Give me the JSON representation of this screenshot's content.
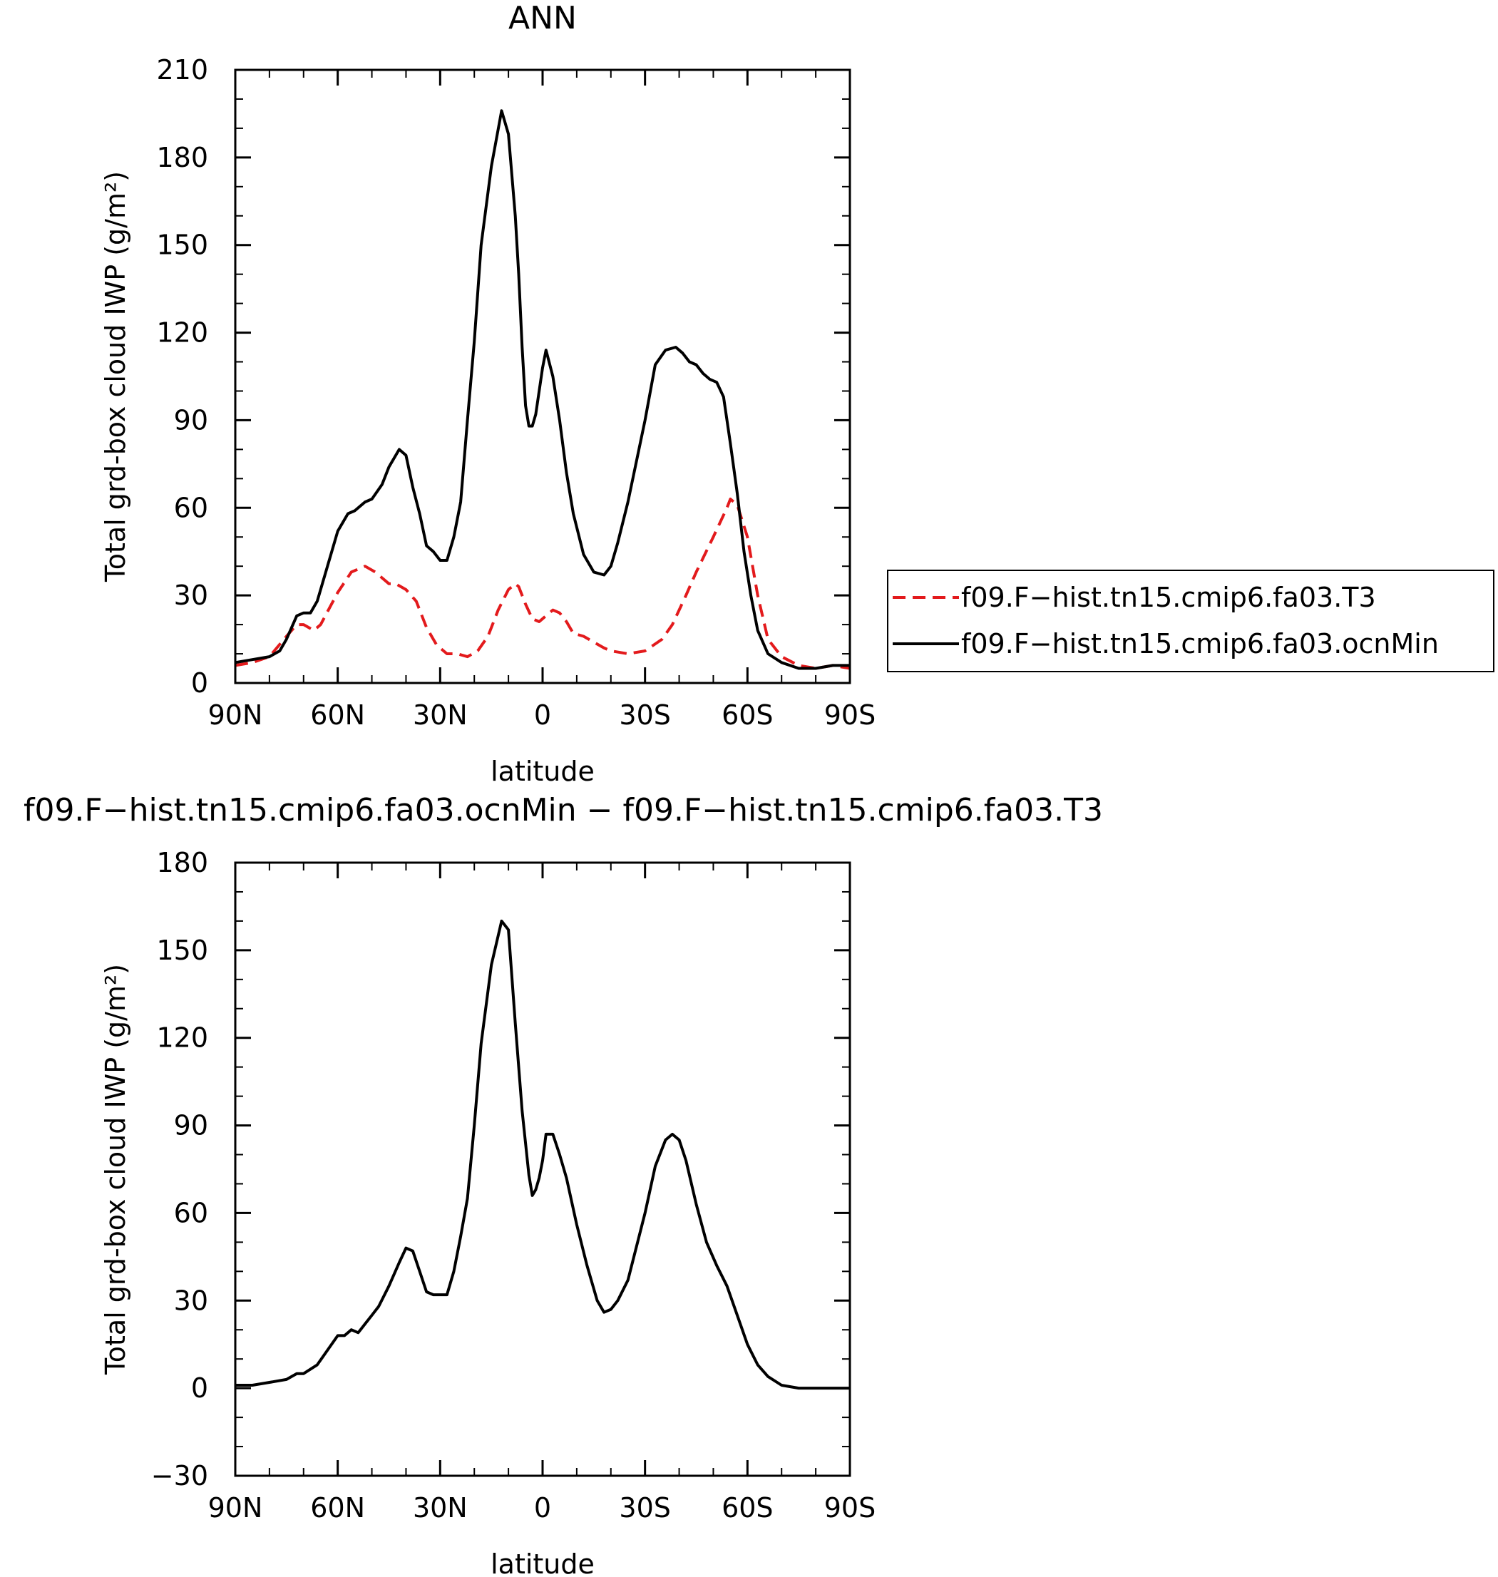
{
  "chart_data": [
    {
      "type": "line",
      "title": "ANN",
      "xlabel": "latitude",
      "ylabel": "Total grd-box cloud IWP (g/m²)",
      "xlim": [
        90,
        -90
      ],
      "ylim": [
        0,
        210
      ],
      "yticks": [
        0,
        30,
        60,
        90,
        120,
        150,
        180,
        210
      ],
      "xticks": [
        90,
        60,
        30,
        0,
        -30,
        -60,
        -90
      ],
      "xtick_labels": [
        "90N",
        "60N",
        "30N",
        "0",
        "30S",
        "60S",
        "90S"
      ],
      "grid": false,
      "legend_position": "right",
      "series": [
        {
          "name": "f09.F−hist.tn15.cmip6.fa03.T3",
          "color": "#e31a1c",
          "dash": "dashed",
          "x": [
            90,
            85,
            80,
            75,
            72,
            70,
            67,
            65,
            60,
            56,
            52,
            49,
            45,
            43,
            40,
            37,
            34,
            31,
            28,
            25,
            22,
            19,
            16,
            13,
            10,
            8,
            7,
            5,
            3,
            1,
            -1,
            -3,
            -5,
            -7,
            -9,
            -12,
            -15,
            -18,
            -20,
            -25,
            -30,
            -35,
            -38,
            -42,
            -45,
            -50,
            -54,
            -55,
            -57,
            -60,
            -63,
            -66,
            -70,
            -75,
            -80,
            -85,
            -90
          ],
          "y": [
            6,
            7,
            9,
            16,
            20,
            20,
            18,
            20,
            31,
            38,
            40,
            38,
            34,
            34,
            32,
            28,
            19,
            13,
            10,
            10,
            9,
            11,
            16,
            25,
            32,
            34,
            33,
            27,
            22,
            21,
            23,
            25,
            24,
            21,
            17,
            16,
            14,
            12,
            11,
            10,
            11,
            15,
            20,
            30,
            38,
            50,
            60,
            63,
            61,
            50,
            30,
            15,
            9,
            6,
            5,
            6,
            5
          ]
        },
        {
          "name": "f09.F−hist.tn15.cmip6.fa03.ocnMin",
          "color": "#000000",
          "dash": "solid",
          "x": [
            90,
            85,
            80,
            77,
            75,
            72,
            70,
            68,
            66,
            63,
            60,
            57,
            55,
            52,
            50,
            47,
            45,
            42,
            40,
            38,
            36,
            34,
            32,
            30,
            28,
            26,
            24,
            22,
            20,
            18,
            15,
            12,
            10,
            8,
            7,
            6,
            5,
            4,
            3,
            2,
            1,
            0,
            -1,
            -3,
            -5,
            -7,
            -9,
            -12,
            -15,
            -18,
            -20,
            -22,
            -25,
            -30,
            -33,
            -36,
            -39,
            -41,
            -43,
            -45,
            -47,
            -49,
            -51,
            -53,
            -55,
            -57,
            -59,
            -61,
            -63,
            -66,
            -70,
            -75,
            -80,
            -85,
            -88,
            -90
          ],
          "y": [
            7,
            8,
            9,
            11,
            15,
            23,
            24,
            24,
            28,
            40,
            52,
            58,
            59,
            62,
            63,
            68,
            74,
            80,
            78,
            67,
            58,
            47,
            45,
            42,
            42,
            50,
            62,
            90,
            117,
            150,
            177,
            196,
            188,
            160,
            140,
            115,
            95,
            88,
            88,
            92,
            100,
            108,
            114,
            105,
            90,
            72,
            58,
            44,
            38,
            37,
            40,
            48,
            62,
            90,
            109,
            114,
            115,
            113,
            110,
            109,
            106,
            104,
            103,
            98,
            82,
            65,
            45,
            30,
            18,
            10,
            7,
            5,
            5,
            6,
            6,
            6
          ]
        }
      ]
    },
    {
      "type": "line",
      "title": "f09.F−hist.tn15.cmip6.fa03.ocnMin − f09.F−hist.tn15.cmip6.fa03.T3",
      "xlabel": "latitude",
      "ylabel": "Total grd-box cloud IWP (g/m²)",
      "xlim": [
        90,
        -90
      ],
      "ylim": [
        -30,
        180
      ],
      "yticks": [
        -30,
        0,
        30,
        60,
        90,
        120,
        150,
        180
      ],
      "xticks": [
        90,
        60,
        30,
        0,
        -30,
        -60,
        -90
      ],
      "xtick_labels": [
        "90N",
        "60N",
        "30N",
        "0",
        "30S",
        "60S",
        "90S"
      ],
      "grid": false,
      "series": [
        {
          "color": "#000000",
          "dash": "solid",
          "x": [
            90,
            85,
            80,
            75,
            72,
            70,
            66,
            63,
            60,
            58,
            56,
            54,
            52,
            50,
            48,
            45,
            42,
            40,
            38,
            36,
            34,
            32,
            30,
            28,
            26,
            24,
            22,
            20,
            18,
            15,
            12,
            10,
            8,
            6,
            4,
            3,
            2,
            1,
            0,
            -1,
            -3,
            -5,
            -7,
            -10,
            -13,
            -16,
            -18,
            -20,
            -22,
            -25,
            -30,
            -33,
            -36,
            -38,
            -40,
            -42,
            -45,
            -48,
            -51,
            -54,
            -57,
            -60,
            -63,
            -66,
            -70,
            -75,
            -80,
            -85,
            -90
          ],
          "y": [
            1,
            1,
            2,
            3,
            5,
            5,
            8,
            13,
            18,
            18,
            20,
            19,
            22,
            25,
            28,
            35,
            43,
            48,
            47,
            40,
            33,
            32,
            32,
            32,
            40,
            52,
            65,
            90,
            118,
            145,
            160,
            157,
            125,
            95,
            73,
            66,
            68,
            72,
            78,
            87,
            87,
            80,
            72,
            56,
            42,
            30,
            26,
            27,
            30,
            37,
            60,
            76,
            85,
            87,
            85,
            78,
            63,
            50,
            42,
            35,
            25,
            15,
            8,
            4,
            1,
            0,
            0,
            0,
            0
          ]
        }
      ]
    }
  ]
}
